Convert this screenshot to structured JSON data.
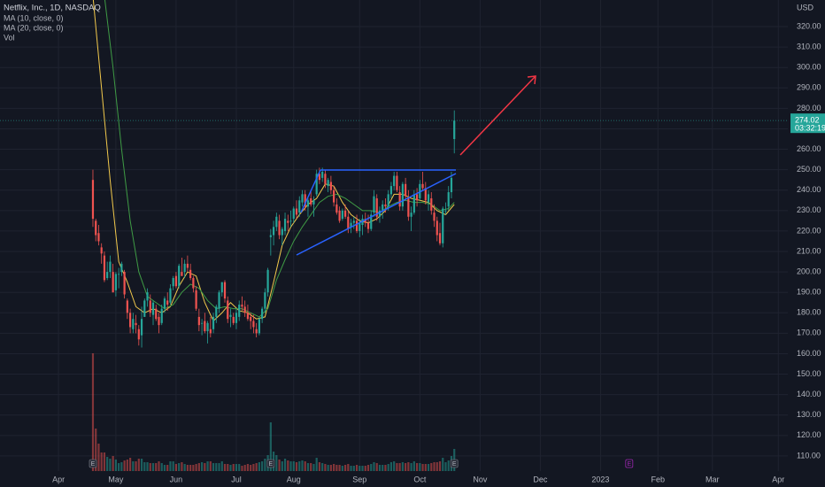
{
  "chart_data": {
    "type": "candlestick",
    "title": "Netflix, Inc., 1D, NASDAQ",
    "volume_label": "Vol",
    "currency": "USD",
    "up_color": "#26a69a",
    "down_color": "#ef5350",
    "grid": true,
    "x": [
      0,
      1,
      2,
      3,
      4,
      5,
      6,
      7,
      8,
      9,
      10,
      11,
      12,
      13,
      14,
      15,
      16,
      17,
      18,
      19,
      20,
      21,
      22,
      23,
      24,
      25,
      26,
      27,
      28,
      29,
      30,
      31,
      32,
      33,
      34,
      35,
      36,
      37,
      38,
      39,
      40,
      41,
      42,
      43,
      44,
      45,
      46,
      47,
      48,
      49,
      50,
      51,
      52,
      53,
      54,
      55,
      56,
      57,
      58,
      59,
      60,
      61,
      62,
      63,
      64,
      65,
      66,
      67,
      68,
      69,
      70,
      71,
      72,
      73,
      74,
      75,
      76,
      77,
      78,
      79,
      80,
      81,
      82,
      83,
      84,
      85,
      86,
      87,
      88,
      89,
      90,
      91,
      92,
      93,
      94,
      95,
      96,
      97,
      98,
      99,
      100,
      101,
      102,
      103,
      104,
      105,
      106,
      107,
      108,
      109,
      110,
      111,
      112,
      113,
      114,
      115,
      116,
      117,
      118,
      119,
      120,
      121,
      122,
      123,
      124,
      125,
      126
    ],
    "open": [
      245,
      225,
      219,
      212,
      208,
      197,
      200,
      200,
      191,
      199,
      200,
      200,
      186,
      180,
      172,
      175,
      172,
      169,
      178,
      186,
      186,
      179,
      182,
      178,
      175,
      182,
      186,
      185,
      193,
      198,
      193,
      200,
      200,
      204,
      201,
      197,
      191,
      178,
      175,
      176,
      171,
      172,
      172,
      178,
      182,
      190,
      195,
      186,
      178,
      178,
      175,
      178,
      184,
      183,
      180,
      178,
      176,
      172,
      170,
      177,
      182,
      190,
      217,
      218,
      222,
      225,
      218,
      220,
      225,
      225,
      226,
      231,
      229,
      234,
      238,
      232,
      236,
      233,
      238,
      248,
      246,
      248,
      242,
      244,
      240,
      233,
      230,
      226,
      230,
      227,
      222,
      224,
      225,
      220,
      223,
      226,
      224,
      221,
      229,
      236,
      227,
      230,
      233,
      232,
      238,
      242,
      247,
      239,
      232,
      243,
      236,
      227,
      229,
      238,
      236,
      243,
      241,
      234,
      236,
      229,
      225,
      219,
      214,
      230,
      232,
      239,
      265
    ],
    "high": [
      250,
      226,
      223,
      214,
      210,
      205,
      208,
      204,
      200,
      202,
      205,
      201,
      187,
      182,
      180,
      179,
      174,
      183,
      187,
      192,
      189,
      186,
      184,
      180,
      184,
      188,
      190,
      194,
      198,
      200,
      204,
      207,
      206,
      208,
      204,
      198,
      193,
      182,
      177,
      180,
      176,
      178,
      180,
      184,
      191,
      195,
      196,
      188,
      182,
      180,
      182,
      186,
      188,
      186,
      184,
      180,
      179,
      175,
      178,
      183,
      192,
      202,
      221,
      225,
      229,
      228,
      222,
      229,
      228,
      230,
      232,
      235,
      237,
      240,
      240,
      236,
      240,
      237,
      250,
      251,
      251,
      250,
      246,
      247,
      242,
      236,
      232,
      231,
      233,
      230,
      226,
      227,
      228,
      226,
      228,
      229,
      228,
      230,
      240,
      238,
      232,
      235,
      236,
      240,
      244,
      249,
      249,
      242,
      244,
      246,
      240,
      232,
      240,
      241,
      245,
      249,
      244,
      240,
      239,
      233,
      227,
      224,
      232,
      234,
      242,
      249,
      279
    ],
    "low": [
      222,
      215,
      213,
      204,
      195,
      196,
      197,
      190,
      188,
      192,
      198,
      187,
      177,
      170,
      170,
      170,
      164,
      163,
      178,
      183,
      178,
      174,
      176,
      170,
      174,
      180,
      181,
      184,
      191,
      192,
      192,
      198,
      197,
      200,
      196,
      190,
      181,
      171,
      169,
      170,
      165,
      168,
      170,
      175,
      180,
      188,
      185,
      175,
      173,
      174,
      172,
      176,
      181,
      178,
      176,
      172,
      170,
      168,
      169,
      175,
      180,
      188,
      208,
      213,
      220,
      216,
      213,
      218,
      220,
      222,
      224,
      226,
      227,
      232,
      230,
      227,
      232,
      227,
      237,
      243,
      244,
      241,
      239,
      238,
      232,
      228,
      224,
      225,
      226,
      219,
      219,
      221,
      219,
      217,
      218,
      222,
      219,
      220,
      227,
      225,
      224,
      226,
      229,
      230,
      236,
      240,
      239,
      230,
      230,
      235,
      225,
      220,
      228,
      232,
      235,
      240,
      233,
      230,
      228,
      222,
      215,
      213,
      212,
      228,
      230,
      236,
      258
    ],
    "close": [
      226,
      218,
      215,
      209,
      196,
      200,
      205,
      190,
      199,
      199,
      204,
      189,
      180,
      173,
      177,
      174,
      167,
      177,
      186,
      190,
      180,
      185,
      177,
      174,
      182,
      187,
      184,
      192,
      197,
      193,
      203,
      198,
      204,
      202,
      197,
      192,
      182,
      174,
      175,
      171,
      175,
      170,
      178,
      183,
      190,
      195,
      187,
      177,
      179,
      175,
      180,
      184,
      183,
      180,
      177,
      176,
      173,
      170,
      177,
      182,
      190,
      201,
      218,
      222,
      227,
      218,
      221,
      226,
      224,
      225,
      231,
      228,
      235,
      238,
      232,
      235,
      233,
      235,
      248,
      245,
      249,
      243,
      245,
      240,
      234,
      229,
      225,
      230,
      227,
      221,
      224,
      225,
      220,
      224,
      226,
      224,
      221,
      228,
      237,
      227,
      230,
      233,
      232,
      238,
      242,
      247,
      240,
      232,
      243,
      237,
      227,
      229,
      238,
      235,
      243,
      241,
      235,
      238,
      230,
      225,
      218,
      214,
      231,
      230,
      239,
      246,
      274.02
    ],
    "volume": [
      133,
      48,
      31,
      21,
      21,
      16,
      14,
      17,
      13,
      9,
      10,
      12,
      13,
      15,
      11,
      11,
      14,
      14,
      10,
      10,
      9,
      9,
      9,
      11,
      9,
      7,
      7,
      11,
      11,
      8,
      9,
      10,
      8,
      7,
      7,
      7,
      8,
      9,
      10,
      9,
      11,
      11,
      9,
      9,
      9,
      11,
      8,
      8,
      7,
      8,
      8,
      8,
      6,
      7,
      8,
      7,
      8,
      9,
      10,
      11,
      14,
      18,
      55,
      22,
      18,
      13,
      11,
      14,
      12,
      11,
      11,
      10,
      11,
      12,
      11,
      9,
      9,
      8,
      15,
      10,
      9,
      8,
      7,
      7,
      8,
      7,
      7,
      6,
      7,
      8,
      6,
      6,
      7,
      6,
      6,
      6,
      7,
      8,
      10,
      9,
      7,
      7,
      7,
      8,
      10,
      11,
      9,
      9,
      10,
      9,
      10,
      9,
      11,
      9,
      9,
      8,
      8,
      8,
      9,
      10,
      10,
      11,
      15,
      10,
      12,
      17,
      25
    ],
    "series": [
      {
        "name": "MA (10, close, 0)",
        "color": "#f2c94c",
        "x": [
          0,
          3,
          6,
          9,
          12,
          15,
          18,
          21,
          24,
          27,
          30,
          33,
          36,
          39,
          42,
          45,
          48,
          51,
          54,
          57,
          60,
          63,
          66,
          69,
          72,
          75,
          78,
          81,
          84,
          87,
          90,
          93,
          96,
          99,
          102,
          105,
          108,
          111,
          114,
          117,
          120,
          123,
          126
        ],
        "values": [
          335,
          290,
          245,
          205,
          195,
          183,
          180,
          182,
          180,
          183,
          193,
          200,
          198,
          185,
          176,
          180,
          185,
          181,
          180,
          177,
          178,
          195,
          213,
          222,
          228,
          233,
          236,
          243,
          242,
          234,
          228,
          225,
          224,
          226,
          230,
          238,
          238,
          236,
          235,
          234,
          230,
          228,
          233
        ]
      },
      {
        "name": "MA (20, close, 0)",
        "color": "#3f9b45",
        "x": [
          4,
          7,
          10,
          13,
          16,
          19,
          22,
          25,
          28,
          31,
          34,
          37,
          40,
          43,
          46,
          49,
          52,
          55,
          58,
          61,
          64,
          67,
          70,
          73,
          76,
          79,
          82,
          85,
          88,
          91,
          94,
          97,
          100,
          103,
          106,
          109,
          112,
          115,
          118,
          121,
          124,
          126
        ],
        "values": [
          335,
          300,
          260,
          225,
          200,
          188,
          185,
          182,
          184,
          190,
          194,
          192,
          186,
          182,
          183,
          182,
          182,
          180,
          178,
          182,
          196,
          206,
          215,
          222,
          228,
          234,
          237,
          238,
          236,
          233,
          230,
          230,
          229,
          232,
          234,
          235,
          234,
          234,
          233,
          230,
          231,
          234
        ]
      }
    ],
    "earnings": {
      "label": "E",
      "x": [
        0,
        62,
        126
      ],
      "upcoming_x": 187
    },
    "last_price": {
      "value": 274.02,
      "label": "274.02"
    },
    "countdown": "03:32:19",
    "xlim": [
      -32.4,
      242.3
    ],
    "xticks": [
      {
        "value": -12,
        "label": "Apr"
      },
      {
        "value": 8,
        "label": "May"
      },
      {
        "value": 29,
        "label": "Jun"
      },
      {
        "value": 50,
        "label": "Jul"
      },
      {
        "value": 70,
        "label": "Aug"
      },
      {
        "value": 93,
        "label": "Sep"
      },
      {
        "value": 114,
        "label": "Oct"
      },
      {
        "value": 135,
        "label": "Nov"
      },
      {
        "value": 156,
        "label": "Dec"
      },
      {
        "value": 177,
        "label": "2023"
      },
      {
        "value": 197,
        "label": "Feb"
      },
      {
        "value": 216,
        "label": "Mar"
      },
      {
        "value": 239,
        "label": "Apr"
      }
    ],
    "ylim": [
      102.6,
      333
    ],
    "yticks": [
      {
        "value": 110,
        "label": "110.00"
      },
      {
        "value": 120,
        "label": "120.00"
      },
      {
        "value": 130,
        "label": "130.00"
      },
      {
        "value": 140,
        "label": "140.00"
      },
      {
        "value": 150,
        "label": "150.00"
      },
      {
        "value": 160,
        "label": "160.00"
      },
      {
        "value": 170,
        "label": "170.00"
      },
      {
        "value": 180,
        "label": "180.00"
      },
      {
        "value": 190,
        "label": "190.00"
      },
      {
        "value": 200,
        "label": "200.00"
      },
      {
        "value": 210,
        "label": "210.00"
      },
      {
        "value": 220,
        "label": "220.00"
      },
      {
        "value": 230,
        "label": "230.00"
      },
      {
        "value": 240,
        "label": "240.00"
      },
      {
        "value": 250,
        "label": "250.00"
      },
      {
        "value": 260,
        "label": "260.00"
      },
      {
        "value": 270,
        "label": "270.00"
      },
      {
        "value": 280,
        "label": "280.00"
      },
      {
        "value": 290,
        "label": "290.00"
      },
      {
        "value": 300,
        "label": "300.00"
      },
      {
        "value": 310,
        "label": "310.00"
      },
      {
        "value": 320,
        "label": "320.00"
      }
    ]
  }
}
